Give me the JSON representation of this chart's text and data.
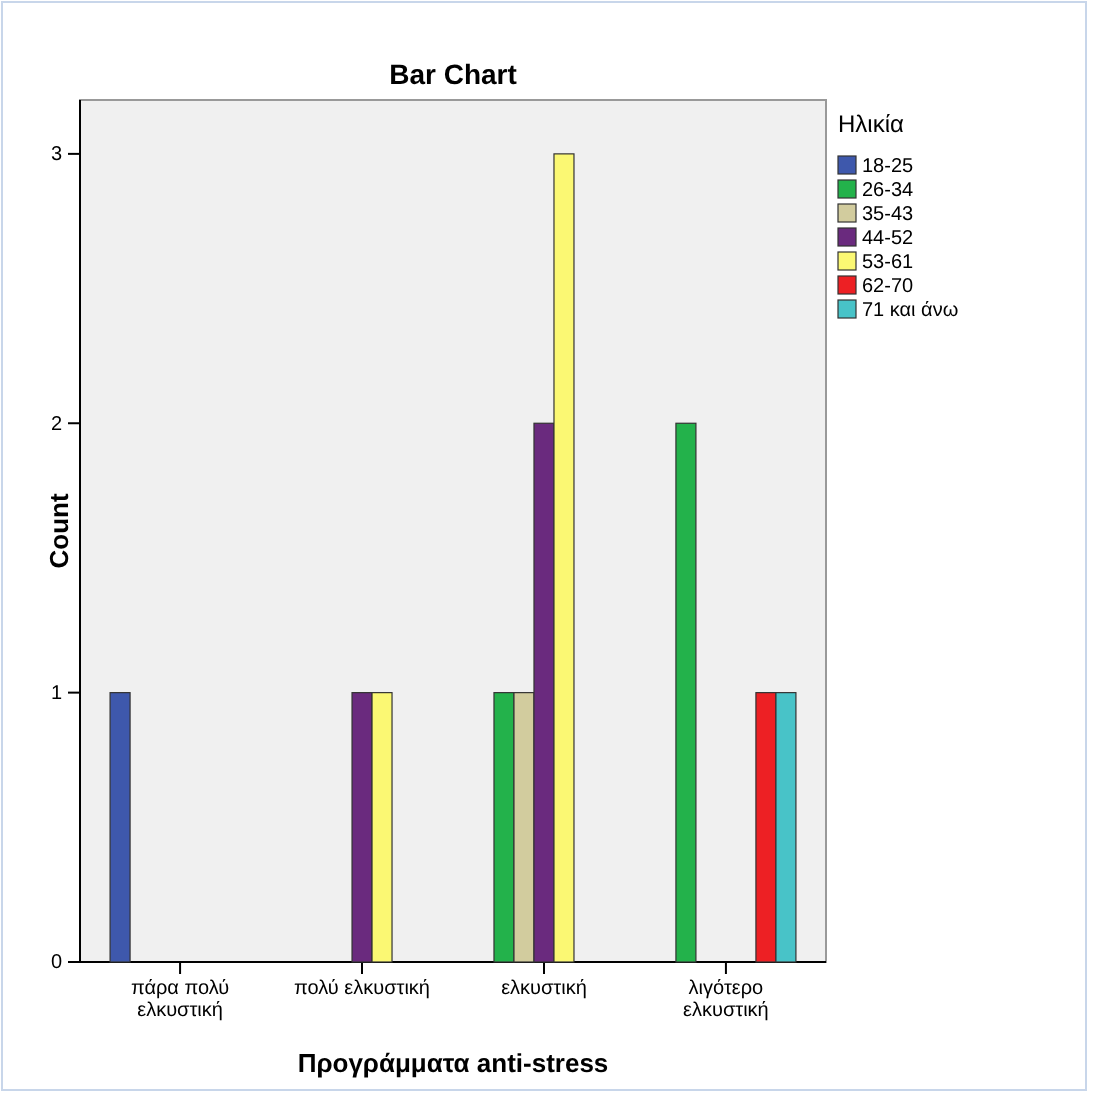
{
  "chart_data": {
    "type": "bar",
    "title": "Bar Chart",
    "xlabel": "Προγράμματα anti-stress",
    "ylabel": "Count",
    "legend_title": "Ηλικία",
    "legend": "right",
    "grid": false,
    "categories": [
      "πάρα πολύ ελκυστική",
      "πολύ ελκυστική",
      "ελκυστική",
      "λιγότερο ελκυστική"
    ],
    "ylim": [
      0,
      3.2
    ],
    "yticks": [
      0,
      1,
      2,
      3
    ],
    "series": [
      {
        "name": "18-25",
        "color": "#3e58ac",
        "values": [
          1,
          null,
          null,
          null
        ]
      },
      {
        "name": "26-34",
        "color": "#23b24b",
        "values": [
          null,
          null,
          1,
          2
        ]
      },
      {
        "name": "35-43",
        "color": "#d2cc9e",
        "values": [
          null,
          null,
          1,
          null
        ]
      },
      {
        "name": "44-52",
        "color": "#6a2a7e",
        "values": [
          null,
          1,
          2,
          null
        ]
      },
      {
        "name": "53-61",
        "color": "#fbf873",
        "values": [
          null,
          1,
          3,
          null
        ]
      },
      {
        "name": "62-70",
        "color": "#ed2024",
        "values": [
          null,
          null,
          null,
          1
        ]
      },
      {
        "name": "71 και άνω",
        "color": "#48c3c8",
        "values": [
          null,
          null,
          null,
          1
        ]
      }
    ]
  }
}
